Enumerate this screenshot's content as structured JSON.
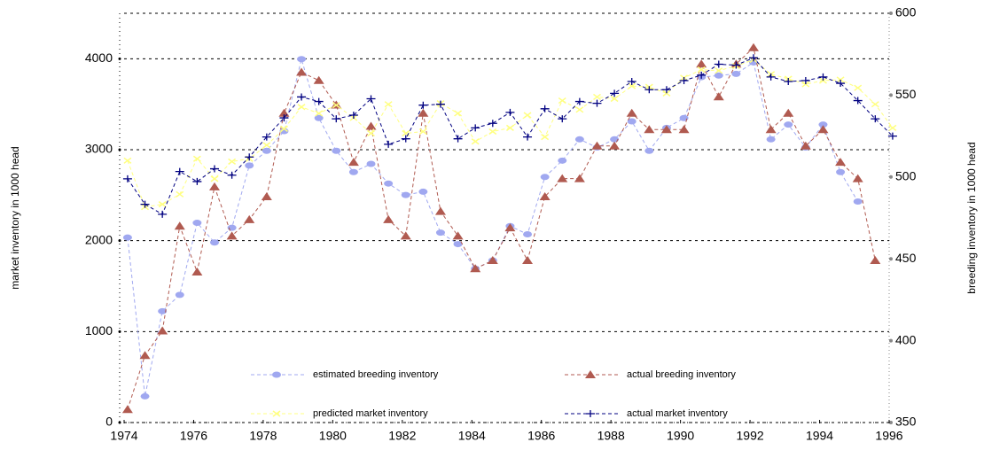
{
  "chart_data": {
    "type": "line",
    "y_label": "market inventory in 1000 head",
    "y2_label": "breeding inventory in 1000 head",
    "xlim": [
      1974,
      1996
    ],
    "xticks": [
      1974,
      1976,
      1978,
      1980,
      1982,
      1984,
      1986,
      1988,
      1990,
      1992,
      1994,
      1996
    ],
    "ylim": [
      0,
      4500
    ],
    "yticks": [
      0,
      1000,
      2000,
      3000,
      4000
    ],
    "y2lim": [
      350,
      600
    ],
    "y2ticks": [
      350,
      400,
      450,
      500,
      550,
      600
    ],
    "grid": true,
    "x": [
      1974.1,
      1974.6,
      1975.1,
      1975.6,
      1976.1,
      1976.6,
      1977.1,
      1977.6,
      1978.1,
      1978.6,
      1979.1,
      1979.6,
      1980.1,
      1980.6,
      1981.1,
      1981.6,
      1982.1,
      1982.6,
      1983.1,
      1983.6,
      1984.1,
      1984.6,
      1985.1,
      1985.6,
      1986.1,
      1986.6,
      1987.1,
      1987.6,
      1988.1,
      1988.6,
      1989.1,
      1989.6,
      1990.1,
      1990.6,
      1991.1,
      1991.6,
      1992.1,
      1992.6,
      1993.1,
      1993.6,
      1994.1,
      1994.6,
      1995.1,
      1995.6,
      1996.1
    ],
    "series": [
      {
        "name": "estimated breeding inventory",
        "color": "#a0a8f0",
        "marker": "ellipse",
        "axis": "y2",
        "values": [
          463,
          366,
          418,
          428,
          472,
          460,
          469,
          507,
          516,
          528,
          572,
          536,
          516,
          503,
          508,
          496,
          489,
          491,
          466,
          459,
          444,
          449,
          470,
          465,
          500,
          510,
          523,
          518,
          523,
          534,
          516,
          530,
          536,
          561,
          562,
          563,
          570,
          523,
          532,
          518,
          532,
          503,
          485,
          null,
          null
        ]
      },
      {
        "name": "actual breeding inventory",
        "color": "#b05a50",
        "marker": "triangle",
        "axis": "y2",
        "values": [
          358,
          391,
          406,
          470,
          442,
          494,
          464,
          474,
          488,
          539,
          564,
          559,
          544,
          509,
          531,
          474,
          464,
          539,
          479,
          464,
          444,
          449,
          469,
          449,
          488,
          499,
          499,
          519,
          519,
          539,
          529,
          529,
          529,
          569,
          549,
          569,
          579,
          529,
          539,
          519,
          529,
          509,
          499,
          449,
          null
        ]
      },
      {
        "name": "predicted market inventory",
        "color": "#ffff80",
        "marker": "cross",
        "values": [
          2880,
          2370,
          2400,
          2510,
          2900,
          2680,
          2870,
          2900,
          3050,
          3230,
          3470,
          3400,
          3490,
          3350,
          3180,
          3500,
          3180,
          3200,
          3510,
          3400,
          3090,
          3200,
          3240,
          3380,
          3140,
          3540,
          3440,
          3580,
          3560,
          3700,
          3690,
          3620,
          3790,
          3880,
          3870,
          3920,
          3990,
          3830,
          3780,
          3720,
          3760,
          3770,
          3680,
          3500,
          3240
        ]
      },
      {
        "name": "actual market inventory",
        "color": "#000080",
        "marker": "plus",
        "values": [
          2680,
          2400,
          2290,
          2760,
          2650,
          2790,
          2720,
          2920,
          3140,
          3350,
          3580,
          3530,
          3340,
          3380,
          3560,
          3060,
          3120,
          3490,
          3500,
          3120,
          3240,
          3290,
          3410,
          3140,
          3450,
          3340,
          3530,
          3510,
          3620,
          3750,
          3660,
          3660,
          3760,
          3820,
          3940,
          3930,
          4010,
          3800,
          3750,
          3760,
          3800,
          3730,
          3540,
          3340,
          3150
        ]
      }
    ]
  }
}
